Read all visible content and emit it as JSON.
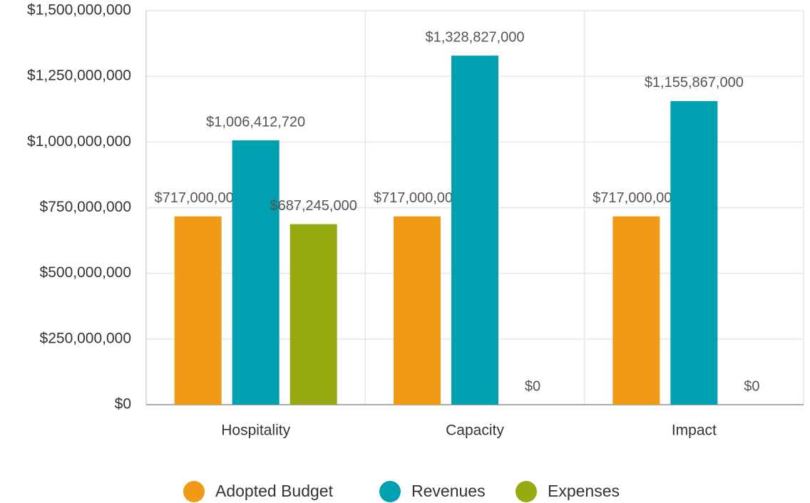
{
  "chart_data": {
    "type": "bar",
    "categories": [
      "Hospitality",
      "Capacity",
      "Impact"
    ],
    "series": [
      {
        "name": "Adopted Budget",
        "color": "#f09a16",
        "values": [
          717000000,
          717000000,
          717000000
        ],
        "value_labels": [
          "$717,000,000",
          "$717,000,000",
          "$717,000,000"
        ]
      },
      {
        "name": "Revenues",
        "color": "#00a0b0",
        "values": [
          1006412720,
          1328827000,
          1155867000
        ],
        "value_labels": [
          "$1,006,412,720",
          "$1,328,827,000",
          "$1,155,867,000"
        ]
      },
      {
        "name": "Expenses",
        "color": "#97aa12",
        "values": [
          687245000,
          0,
          0
        ],
        "value_labels": [
          "$687,245,000",
          "$0",
          "$0"
        ]
      }
    ],
    "ylim": [
      0,
      1500000000
    ],
    "yticks": [
      {
        "value": 0,
        "label": "$0"
      },
      {
        "value": 250000000,
        "label": "$250,000,000"
      },
      {
        "value": 500000000,
        "label": "$500,000,000"
      },
      {
        "value": 750000000,
        "label": "$750,000,000"
      },
      {
        "value": 1000000000,
        "label": "$1,000,000,000"
      },
      {
        "value": 1250000000,
        "label": "$1,250,000,000"
      },
      {
        "value": 1500000000,
        "label": "$1,500,000,000"
      }
    ],
    "grid": true,
    "legend": "bottom"
  }
}
